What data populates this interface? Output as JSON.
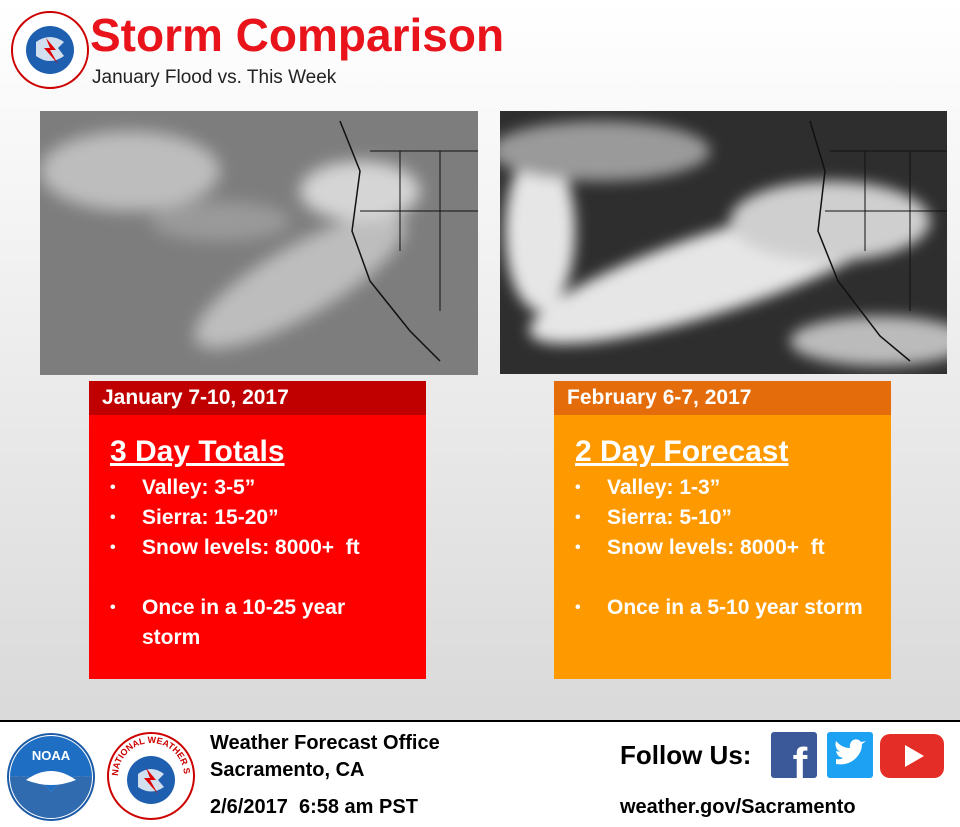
{
  "header": {
    "title": "Storm Comparison",
    "subtitle": "January Flood vs. This Week"
  },
  "panels": [
    {
      "date": "January 7-10, 2017",
      "heading": "3 Day Totals",
      "bullets": [
        "Valley: 3-5”",
        "Sierra: 15-20”",
        "Snow levels: 8000+  ft",
        "Once in a 10-25 year storm"
      ]
    },
    {
      "date": "February 6-7, 2017",
      "heading": "2 Day Forecast",
      "bullets": [
        "Valley: 1-3”",
        "Sierra: 5-10”",
        "Snow levels: 8000+  ft",
        "Once in a 5-10 year storm"
      ]
    }
  ],
  "footer": {
    "noaa": "NOAA",
    "nws": "NATIONAL WEATHER SERVICE",
    "office": "Weather Forecast Office",
    "location": "Sacramento, CA",
    "timestamp": "2/6/2017  6:58 am PST",
    "follow": "Follow Us:",
    "facebook": "f",
    "url": "weather.gov/Sacramento"
  }
}
